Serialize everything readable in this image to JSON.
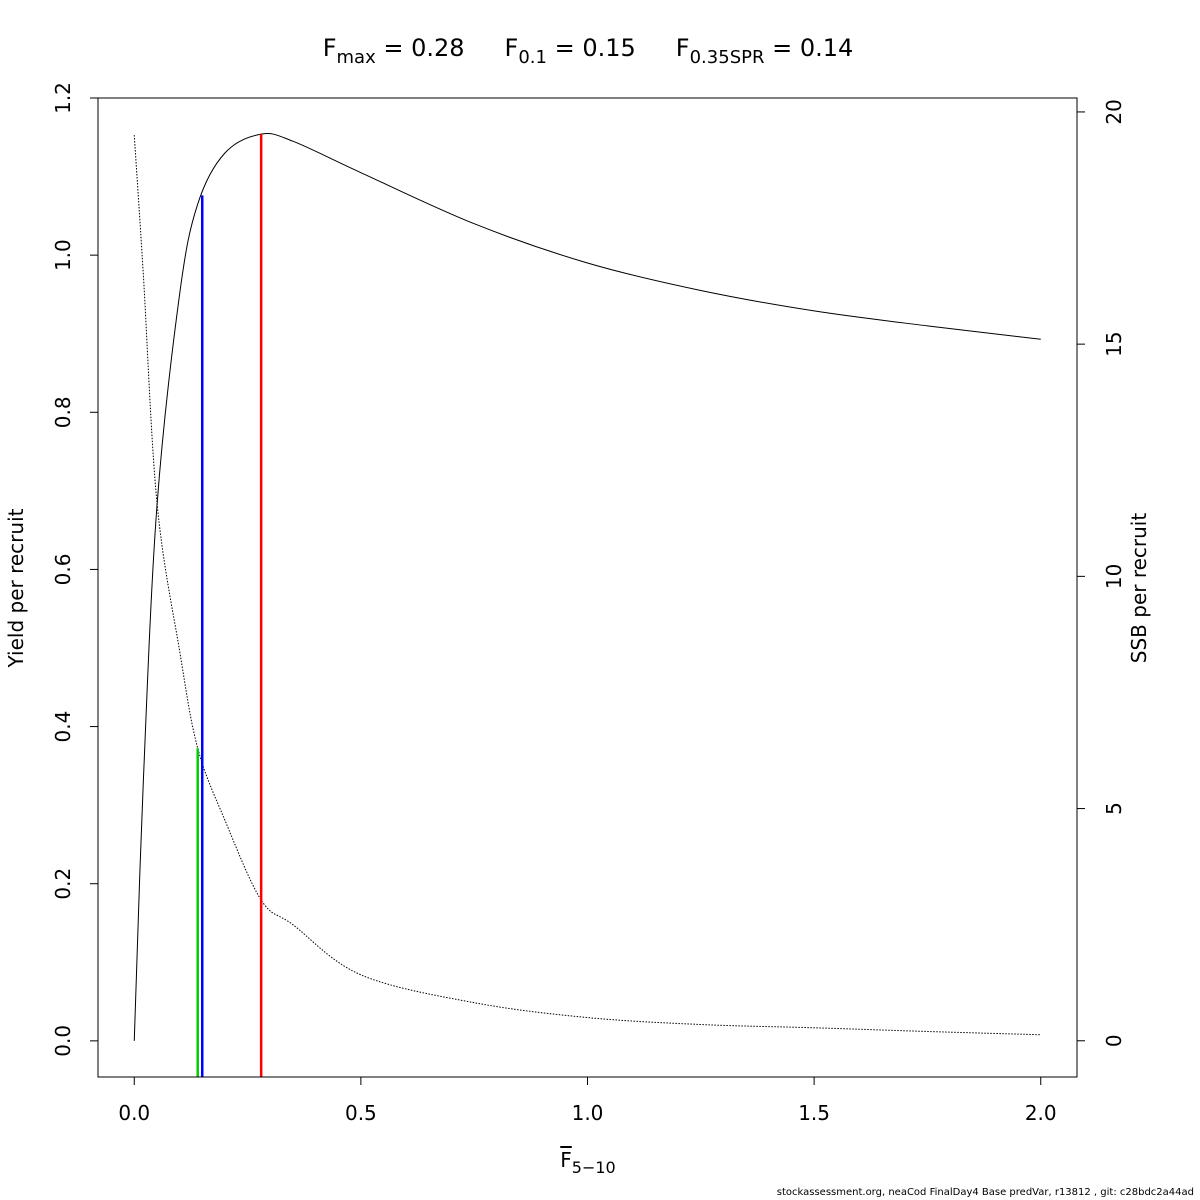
{
  "chart_data": {
    "type": "line",
    "title_parts": [
      {
        "base": "F",
        "sub": "max",
        "rest": " = 0.28"
      },
      {
        "base": "F",
        "sub": "0.1",
        "rest": " = 0.15"
      },
      {
        "base": "F",
        "sub": "0.35SPR",
        "rest": " = 0.14"
      }
    ],
    "xlabel": {
      "base": "F",
      "sub": "5−10",
      "overline": true
    },
    "ylabel": "Yield per recruit",
    "y2label": "SSB per recruit",
    "xlim": [
      -0.08,
      2.08
    ],
    "ylim": [
      -0.046,
      1.2
    ],
    "y2lim": [
      -0.78,
      20.3
    ],
    "x_ticks": [
      "0.0",
      "0.5",
      "1.0",
      "1.5",
      "2.0"
    ],
    "y_ticks": [
      "0.0",
      "0.2",
      "0.4",
      "0.6",
      "0.8",
      "1.0",
      "1.2"
    ],
    "y2_ticks": [
      "0",
      "5",
      "10",
      "15",
      "20"
    ],
    "grid": false,
    "series": [
      {
        "axis": "left",
        "style": "solid",
        "color": "#000000",
        "x": [
          0,
          0.02,
          0.05,
          0.1,
          0.14,
          0.2,
          0.28,
          0.35,
          0.5,
          0.75,
          1.0,
          1.25,
          1.5,
          1.75,
          2.0
        ],
        "y": [
          0,
          0.33,
          0.68,
          0.95,
          1.065,
          1.13,
          1.154,
          1.145,
          1.105,
          1.04,
          0.99,
          0.955,
          0.929,
          0.91,
          0.893
        ]
      },
      {
        "axis": "right",
        "style": "dotted",
        "color": "#000000",
        "x": [
          0,
          0.02,
          0.05,
          0.1,
          0.14,
          0.2,
          0.28,
          0.35,
          0.5,
          0.75,
          1.0,
          1.25,
          1.5,
          1.75,
          2.0
        ],
        "y": [
          19.5,
          16.5,
          11.6,
          8.4,
          6.3,
          4.75,
          3.03,
          2.5,
          1.42,
          0.82,
          0.5,
          0.35,
          0.28,
          0.2,
          0.13
        ]
      }
    ],
    "reference_lines": [
      {
        "x": 0.28,
        "top": 1.154,
        "axis": "left",
        "color": "#ff0000"
      },
      {
        "x": 0.15,
        "top": 1.076,
        "axis": "left",
        "color": "#0000ff"
      },
      {
        "x": 0.14,
        "top": 6.3,
        "axis": "right",
        "color": "#00cc00"
      }
    ]
  },
  "footer": "stockassessment.org, neaCod  FinalDay4  Base  predVar, r13812 , git: c28bdc2a44ad"
}
